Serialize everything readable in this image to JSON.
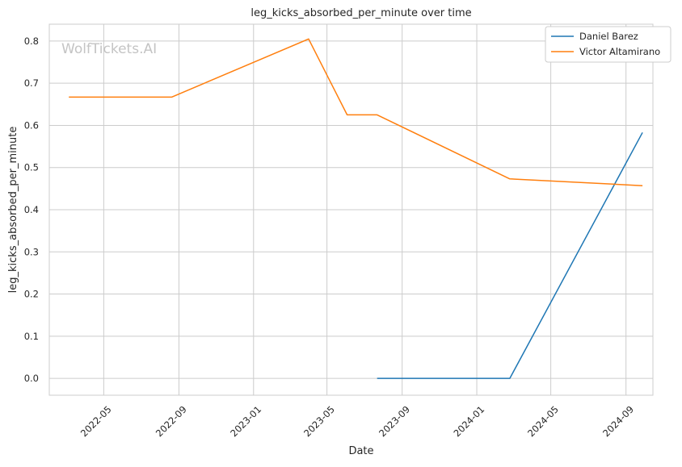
{
  "watermark": "WolfTickets.AI",
  "chart_data": {
    "type": "line",
    "title": "leg_kicks_absorbed_per_minute over time",
    "xlabel": "Date",
    "ylabel": "leg_kicks_absorbed_per_minute",
    "xlim": [
      "2022-02-01",
      "2024-10-15"
    ],
    "ylim": [
      -0.04,
      0.84
    ],
    "x_ticks": [
      "2022-05",
      "2022-09",
      "2023-01",
      "2023-05",
      "2023-09",
      "2024-01",
      "2024-05",
      "2024-09"
    ],
    "y_ticks": [
      "0.0",
      "0.1",
      "0.2",
      "0.3",
      "0.4",
      "0.5",
      "0.6",
      "0.7",
      "0.8"
    ],
    "grid": true,
    "legend_position": "top-right",
    "series": [
      {
        "name": "Daniel Barez",
        "color": "#1f77b4",
        "points": [
          {
            "x": "2023-07-22",
            "y": 0.0
          },
          {
            "x": "2024-02-24",
            "y": 0.0
          },
          {
            "x": "2024-09-28",
            "y": 0.583
          }
        ]
      },
      {
        "name": "Victor Altamirano",
        "color": "#ff7f0e",
        "points": [
          {
            "x": "2022-03-05",
            "y": 0.667
          },
          {
            "x": "2022-08-20",
            "y": 0.667
          },
          {
            "x": "2023-04-01",
            "y": 0.805
          },
          {
            "x": "2023-06-03",
            "y": 0.625
          },
          {
            "x": "2023-07-22",
            "y": 0.625
          },
          {
            "x": "2024-02-24",
            "y": 0.473
          },
          {
            "x": "2024-09-28",
            "y": 0.457
          }
        ]
      }
    ]
  }
}
